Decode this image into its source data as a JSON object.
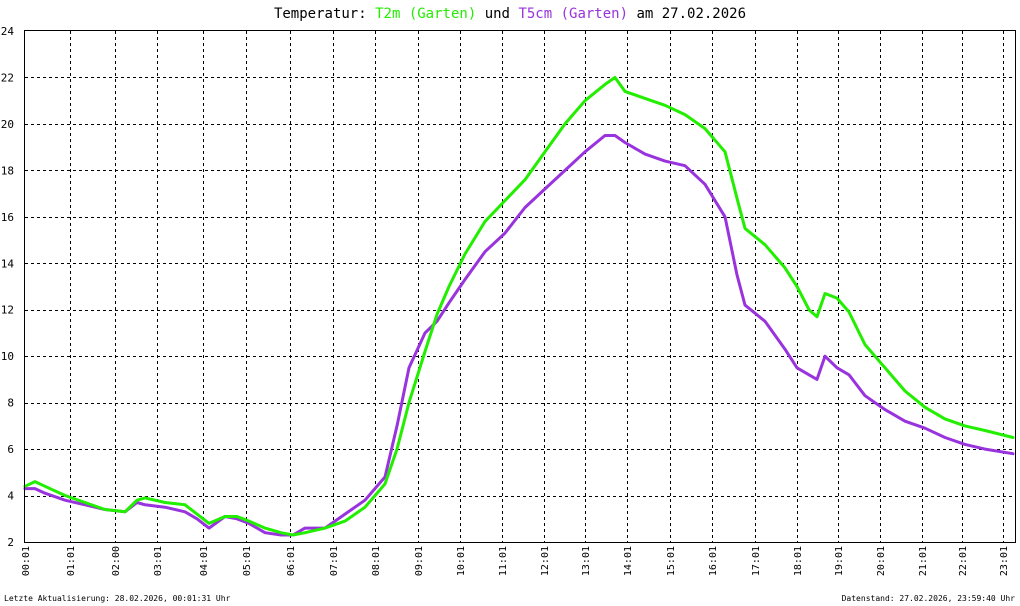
{
  "title": {
    "prefix": "Temperatur:",
    "series1": "T2m (Garten)",
    "middle": "und",
    "series2": "T5cm (Garten)",
    "suffix": "am 27.02.2026"
  },
  "footer": {
    "left": "Letzte Aktualisierung: 28.02.2026, 00:01:31 Uhr",
    "right": "Datenstand: 27.02.2026, 23:59:40 Uhr"
  },
  "colors": {
    "series1": "#22ee00",
    "series2": "#9933dd",
    "grid": "#000000",
    "axis": "#000000",
    "background": "#ffffff"
  },
  "chart_data": {
    "type": "line",
    "title": "Temperatur: T2m (Garten) und T5cm (Garten) am 27.02.2026",
    "xlabel": "",
    "ylabel": "",
    "xlim": [
      0,
      24.75
    ],
    "ylim": [
      2,
      24
    ],
    "grid": true,
    "legend": "title",
    "y_ticks": [
      "2",
      "4",
      "6",
      "8",
      "10",
      "12",
      "14",
      "16",
      "18",
      "20",
      "22",
      "24"
    ],
    "x_ticks": [
      "00:01",
      "01:01",
      "02:00",
      "03:01",
      "04:01",
      "05:01",
      "06:01",
      "07:01",
      "08:01",
      "09:01",
      "10:01",
      "11:01",
      "12:01",
      "13:01",
      "14:01",
      "15:01",
      "16:01",
      "17:01",
      "18:01",
      "19:01",
      "20:01",
      "21:01",
      "22:01",
      "23:01"
    ],
    "series": [
      {
        "name": "T2m (Garten)",
        "x": [
          0,
          0.25,
          0.5,
          1,
          1.5,
          2,
          2.5,
          2.8,
          3,
          3.5,
          4,
          4.3,
          4.6,
          5,
          5.3,
          5.6,
          6,
          6.4,
          6.7,
          7,
          7.5,
          8,
          8.5,
          9,
          9.3,
          9.6,
          10,
          10.3,
          10.6,
          11,
          11.5,
          12,
          12.5,
          13,
          13.5,
          14,
          14.5,
          14.75,
          15,
          15.5,
          16,
          16.5,
          17,
          17.5,
          17.8,
          18,
          18.5,
          19,
          19.3,
          19.6,
          19.8,
          20,
          20.3,
          20.6,
          21,
          21.5,
          22,
          22.5,
          23,
          23.5,
          24,
          24.7
        ],
        "values": [
          4.4,
          4.6,
          4.4,
          4.0,
          3.7,
          3.4,
          3.3,
          3.8,
          3.9,
          3.7,
          3.6,
          3.2,
          2.8,
          3.1,
          3.1,
          2.9,
          2.6,
          2.4,
          2.3,
          2.4,
          2.6,
          2.9,
          3.5,
          4.5,
          6.0,
          8.0,
          10.2,
          11.8,
          13.0,
          14.4,
          15.8,
          16.7,
          17.6,
          18.8,
          20.0,
          21.0,
          21.7,
          22.0,
          21.4,
          21.1,
          20.8,
          20.4,
          19.8,
          18.8,
          16.8,
          15.5,
          14.8,
          13.8,
          13.0,
          12.0,
          11.7,
          12.7,
          12.5,
          11.9,
          10.5,
          9.5,
          8.5,
          7.8,
          7.3,
          7.0,
          6.8,
          6.5
        ]
      },
      {
        "name": "T5cm (Garten)",
        "x": [
          0,
          0.25,
          0.5,
          1,
          1.5,
          2,
          2.5,
          2.8,
          3,
          3.5,
          4,
          4.3,
          4.6,
          5,
          5.3,
          5.6,
          6,
          6.4,
          6.7,
          7,
          7.5,
          8,
          8.5,
          9,
          9.3,
          9.6,
          10,
          10.3,
          10.6,
          11,
          11.5,
          12,
          12.5,
          13,
          13.5,
          14,
          14.5,
          14.75,
          15,
          15.5,
          16,
          16.5,
          17,
          17.5,
          17.8,
          18,
          18.5,
          19,
          19.3,
          19.6,
          19.8,
          20,
          20.3,
          20.6,
          21,
          21.5,
          22,
          22.5,
          23,
          23.5,
          24,
          24.7
        ],
        "values": [
          4.3,
          4.3,
          4.1,
          3.8,
          3.6,
          3.4,
          3.3,
          3.7,
          3.6,
          3.5,
          3.3,
          3.0,
          2.6,
          3.1,
          3.0,
          2.8,
          2.4,
          2.3,
          2.3,
          2.6,
          2.6,
          3.2,
          3.8,
          4.8,
          7.0,
          9.5,
          11.0,
          11.5,
          12.3,
          13.3,
          14.5,
          15.3,
          16.4,
          17.2,
          18.0,
          18.8,
          19.5,
          19.5,
          19.2,
          18.7,
          18.4,
          18.2,
          17.4,
          16.0,
          13.5,
          12.2,
          11.5,
          10.3,
          9.5,
          9.2,
          9.0,
          10.0,
          9.5,
          9.2,
          8.3,
          7.7,
          7.2,
          6.9,
          6.5,
          6.2,
          6.0,
          5.8
        ]
      }
    ]
  }
}
